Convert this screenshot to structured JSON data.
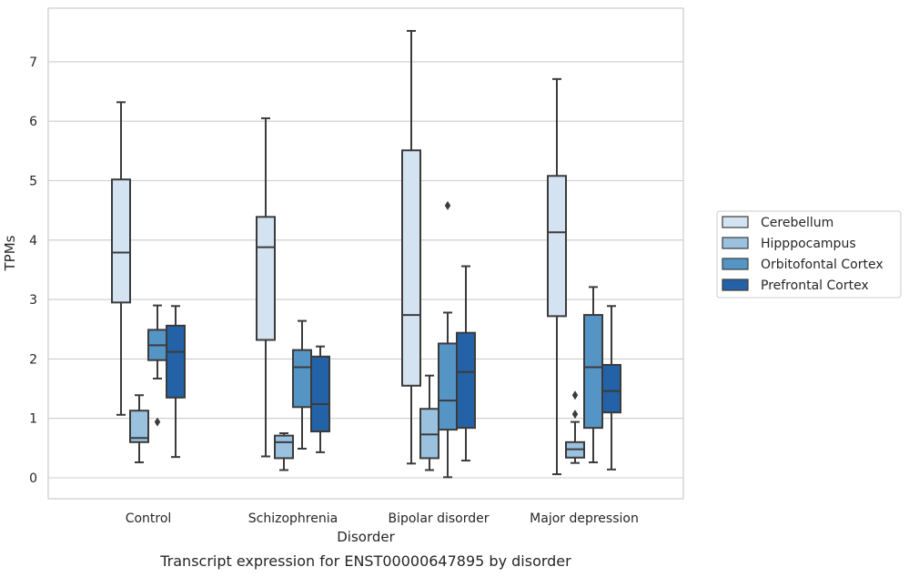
{
  "chart_data": {
    "type": "box",
    "title": "Transcript expression for ENST00000647895 by disorder",
    "xlabel": "Disorder",
    "ylabel": "TPMs",
    "ylim": [
      -0.35,
      7.85
    ],
    "yticks": [
      0,
      1,
      2,
      3,
      4,
      5,
      6,
      7
    ],
    "grid": true,
    "legend_position": "right",
    "categories": [
      "Control",
      "Schizophrenia",
      "Bipolar disorder",
      "Major depression"
    ],
    "series": [
      {
        "name": "Cerebellum",
        "color": "#d4e3f2",
        "boxes": [
          {
            "whisker_low": 1.06,
            "q1": 2.95,
            "median": 3.79,
            "q3": 5.02,
            "whisker_high": 6.32,
            "outliers": []
          },
          {
            "whisker_low": 0.36,
            "q1": 2.32,
            "median": 3.88,
            "q3": 4.39,
            "whisker_high": 6.05,
            "outliers": []
          },
          {
            "whisker_low": 0.24,
            "q1": 1.55,
            "median": 2.74,
            "q3": 5.51,
            "whisker_high": 7.52,
            "outliers": []
          },
          {
            "whisker_low": 0.06,
            "q1": 2.72,
            "median": 4.13,
            "q3": 5.08,
            "whisker_high": 6.71,
            "outliers": []
          }
        ]
      },
      {
        "name": "Hipppocampus",
        "color": "#9ac2df",
        "boxes": [
          {
            "whisker_low": 0.26,
            "q1": 0.6,
            "median": 0.67,
            "q3": 1.13,
            "whisker_high": 1.39,
            "outliers": []
          },
          {
            "whisker_low": 0.13,
            "q1": 0.33,
            "median": 0.6,
            "q3": 0.71,
            "whisker_high": 0.75,
            "outliers": []
          },
          {
            "whisker_low": 0.13,
            "q1": 0.33,
            "median": 0.73,
            "q3": 1.16,
            "whisker_high": 1.72,
            "outliers": []
          },
          {
            "whisker_low": 0.25,
            "q1": 0.34,
            "median": 0.48,
            "q3": 0.6,
            "whisker_high": 0.94,
            "outliers": [
              1.07,
              1.39
            ]
          }
        ]
      },
      {
        "name": "Orbitofontal Cortex",
        "color": "#5595c6",
        "boxes": [
          {
            "whisker_low": 1.67,
            "q1": 1.98,
            "median": 2.23,
            "q3": 2.49,
            "whisker_high": 2.9,
            "outliers": [
              0.94
            ]
          },
          {
            "whisker_low": 0.49,
            "q1": 1.19,
            "median": 1.86,
            "q3": 2.15,
            "whisker_high": 2.64,
            "outliers": []
          },
          {
            "whisker_low": 0.01,
            "q1": 0.81,
            "median": 1.3,
            "q3": 2.26,
            "whisker_high": 2.78,
            "outliers": [
              4.58
            ]
          },
          {
            "whisker_low": 0.26,
            "q1": 0.84,
            "median": 1.86,
            "q3": 2.74,
            "whisker_high": 3.21,
            "outliers": []
          }
        ]
      },
      {
        "name": "Prefrontal Cortex",
        "color": "#2362a6",
        "boxes": [
          {
            "whisker_low": 0.35,
            "q1": 1.35,
            "median": 2.12,
            "q3": 2.56,
            "whisker_high": 2.89,
            "outliers": []
          },
          {
            "whisker_low": 0.43,
            "q1": 0.78,
            "median": 1.24,
            "q3": 2.04,
            "whisker_high": 2.21,
            "outliers": []
          },
          {
            "whisker_low": 0.29,
            "q1": 0.84,
            "median": 1.78,
            "q3": 2.44,
            "whisker_high": 3.56,
            "outliers": []
          },
          {
            "whisker_low": 0.14,
            "q1": 1.1,
            "median": 1.46,
            "q3": 1.9,
            "whisker_high": 2.89,
            "outliers": []
          }
        ]
      }
    ]
  }
}
